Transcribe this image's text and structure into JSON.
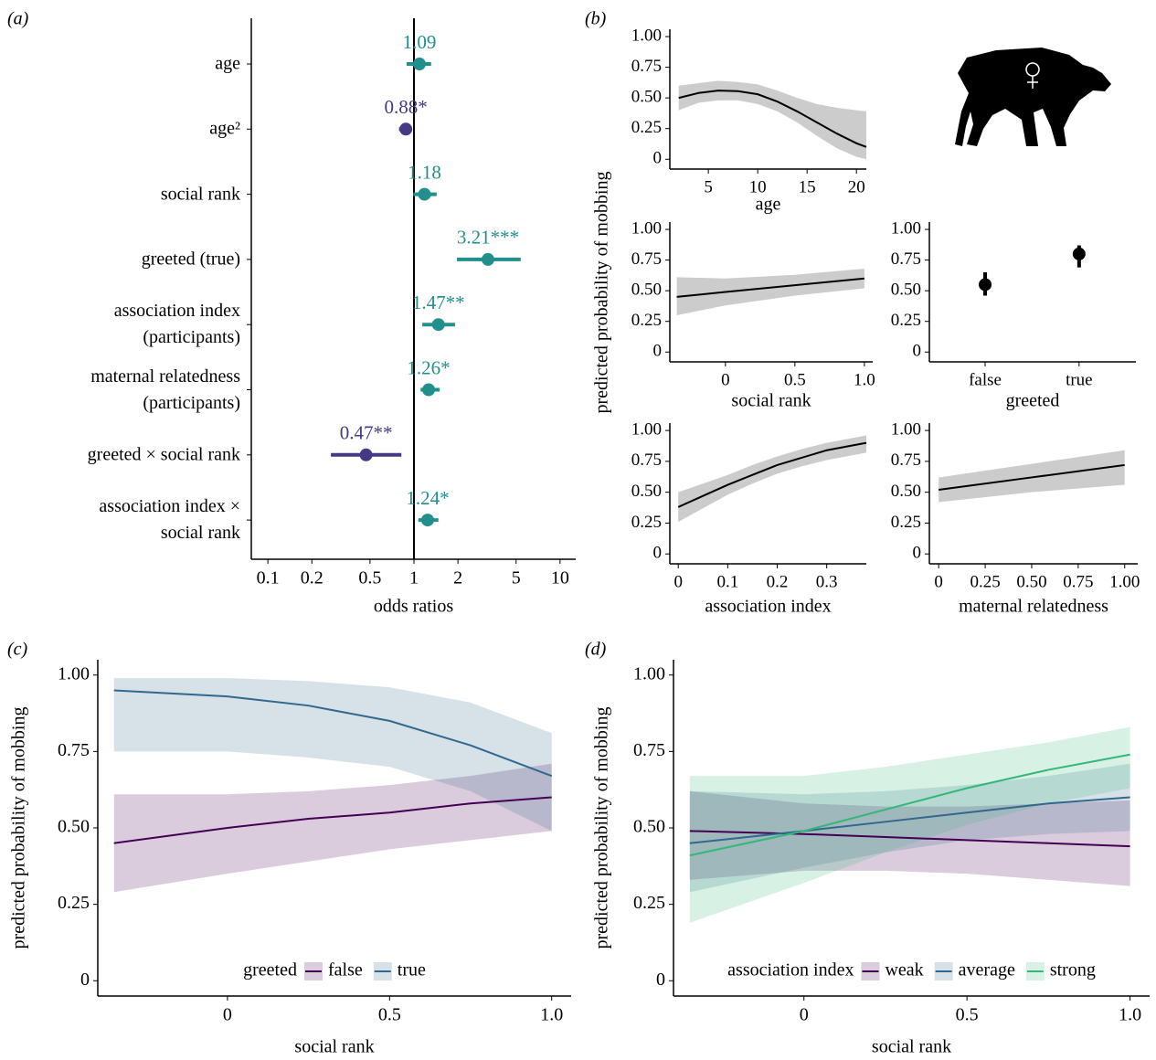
{
  "chart_data": [
    {
      "type": "forest",
      "panel": "(a)",
      "xlabel": "odds ratios",
      "log_x": true,
      "xlim": [
        0.077,
        12.8
      ],
      "xticks": [
        0.1,
        0.2,
        0.5,
        1,
        2,
        5,
        10
      ],
      "refline": 1,
      "categories": [
        "age",
        "age²",
        "social rank",
        "greeted (true)",
        "association index\n(participants)",
        "maternal relatedness\n(participants)",
        "greeted × social rank",
        "association index ×\nsocial rank"
      ],
      "values": [
        1.09,
        0.88,
        1.18,
        3.21,
        1.47,
        1.26,
        0.47,
        1.24
      ],
      "value_labels": [
        "1.09",
        "0.88*",
        "1.18",
        "3.21***",
        "1.47**",
        "1.26*",
        "0.47**",
        "1.24*"
      ],
      "lower": [
        0.89,
        0.79,
        0.99,
        1.97,
        1.14,
        1.11,
        0.27,
        1.07
      ],
      "upper": [
        1.31,
        0.96,
        1.43,
        5.38,
        1.91,
        1.5,
        0.82,
        1.47
      ],
      "colors": [
        "#21908c",
        "#443a83",
        "#21908c",
        "#21908c",
        "#21908c",
        "#21908c",
        "#443a83",
        "#21908c"
      ]
    },
    {
      "type": "line",
      "panel": "(b)",
      "ylabel": "predicted probability of mobbing",
      "xlabel": "age",
      "x": [
        2,
        4,
        6,
        8,
        10,
        12,
        14,
        16,
        18,
        20,
        21
      ],
      "xlim": [
        1.1,
        21
      ],
      "xticks": [
        5,
        10,
        15,
        20
      ],
      "ylim": [
        -0.08,
        1.06
      ],
      "yticks": [
        0,
        0.25,
        {
          "value": 0.5,
          "label": "0.50"
        },
        0.75,
        {
          "value": 1,
          "label": "1.00"
        }
      ],
      "series": [
        {
          "color": "#000000",
          "values": [
            0.5,
            0.54,
            0.56,
            0.555,
            0.53,
            0.47,
            0.39,
            0.3,
            0.21,
            0.13,
            0.1
          ],
          "lower": [
            0.4,
            0.46,
            0.48,
            0.48,
            0.45,
            0.39,
            0.3,
            0.19,
            0.09,
            0.02,
            0.0
          ],
          "upper": [
            0.6,
            0.62,
            0.64,
            0.63,
            0.61,
            0.56,
            0.5,
            0.45,
            0.42,
            0.4,
            0.39
          ]
        }
      ]
    },
    {
      "type": "line",
      "xlabel": "social rank",
      "x": [
        -0.35,
        0,
        0.5,
        1.0
      ],
      "xlim": [
        -0.4,
        1.06
      ],
      "xticks": [
        0,
        0.5,
        {
          "value": 1,
          "label": "1.0"
        }
      ],
      "ylim": [
        -0.08,
        1.06
      ],
      "yticks": [
        0,
        0.25,
        {
          "value": 0.5,
          "label": "0.50"
        },
        0.75,
        {
          "value": 1,
          "label": "1.00"
        }
      ],
      "series": [
        {
          "color": "#000000",
          "values": [
            0.45,
            0.49,
            0.545,
            0.6
          ],
          "lower": [
            0.3,
            0.38,
            0.46,
            0.52
          ],
          "upper": [
            0.61,
            0.6,
            0.63,
            0.68
          ]
        }
      ]
    },
    {
      "type": "pointrange",
      "xlabel": "greeted",
      "categories": [
        "false",
        "true"
      ],
      "values": [
        0.55,
        0.8
      ],
      "lower": [
        0.46,
        0.69
      ],
      "upper": [
        0.65,
        0.87
      ],
      "color": "#000000",
      "ylim": [
        -0.08,
        1.06
      ],
      "yticks": [
        0,
        0.25,
        {
          "value": 0.5,
          "label": "0.50"
        },
        0.75,
        {
          "value": 1,
          "label": "1.00"
        }
      ]
    },
    {
      "type": "line",
      "xlabel": "association index",
      "x": [
        0,
        0.05,
        0.1,
        0.15,
        0.2,
        0.25,
        0.3,
        0.38
      ],
      "xlim": [
        -0.017,
        0.38
      ],
      "xticks": [
        0,
        0.1,
        0.2,
        0.3
      ],
      "ylim": [
        -0.08,
        1.06
      ],
      "yticks": [
        0,
        0.25,
        {
          "value": 0.5,
          "label": "0.50"
        },
        0.75,
        {
          "value": 1,
          "label": "1.00"
        }
      ],
      "series": [
        {
          "color": "#000000",
          "values": [
            0.38,
            0.47,
            0.56,
            0.64,
            0.72,
            0.78,
            0.84,
            0.9
          ],
          "lower": [
            0.26,
            0.37,
            0.48,
            0.57,
            0.65,
            0.71,
            0.76,
            0.82
          ],
          "upper": [
            0.5,
            0.57,
            0.64,
            0.72,
            0.79,
            0.85,
            0.9,
            0.96
          ]
        }
      ]
    },
    {
      "type": "line",
      "xlabel": "maternal relatedness",
      "x": [
        0,
        0.5,
        1.0
      ],
      "xlim": [
        -0.05,
        1.07
      ],
      "xticks": [
        0,
        0.25,
        {
          "value": 0.5,
          "label": "0.50"
        },
        0.75,
        {
          "value": 1,
          "label": "1.00"
        }
      ],
      "ylim": [
        -0.08,
        1.06
      ],
      "yticks": [
        0,
        0.25,
        {
          "value": 0.5,
          "label": "0.50"
        },
        0.75,
        {
          "value": 1,
          "label": "1.00"
        }
      ],
      "series": [
        {
          "color": "#000000",
          "values": [
            0.52,
            0.62,
            0.72
          ],
          "lower": [
            0.42,
            0.5,
            0.56
          ],
          "upper": [
            0.62,
            0.73,
            0.84
          ]
        }
      ]
    },
    {
      "type": "line",
      "panel": "(c)",
      "ylabel": "predicted probability of mobbing",
      "xlabel": "social rank",
      "legend": "bottom",
      "legend_title": "greeted",
      "x": [
        -0.35,
        0,
        0.25,
        0.5,
        0.75,
        1.0
      ],
      "xlim": [
        -0.4,
        1.06
      ],
      "xticks": [
        0,
        0.5,
        {
          "value": 1,
          "label": "1.0"
        }
      ],
      "ylim": [
        -0.05,
        1.05
      ],
      "yticks": [
        0,
        0.25,
        {
          "value": 0.5,
          "label": "0.50"
        },
        0.75,
        {
          "value": 1,
          "label": "1.00"
        }
      ],
      "series": [
        {
          "name": "false",
          "color": "#440154",
          "values": [
            0.45,
            0.5,
            0.53,
            0.55,
            0.58,
            0.6
          ],
          "lower": [
            0.29,
            0.35,
            0.39,
            0.43,
            0.46,
            0.49
          ],
          "upper": [
            0.61,
            0.61,
            0.62,
            0.64,
            0.67,
            0.71
          ]
        },
        {
          "name": "true",
          "color": "#31688e",
          "values": [
            0.95,
            0.93,
            0.9,
            0.85,
            0.77,
            0.67
          ],
          "lower": [
            0.75,
            0.75,
            0.73,
            0.7,
            0.62,
            0.49
          ],
          "upper": [
            0.99,
            0.99,
            0.98,
            0.96,
            0.91,
            0.81
          ]
        }
      ]
    },
    {
      "type": "line",
      "panel": "(d)",
      "ylabel": "predicted probability of mobbing",
      "xlabel": "social rank",
      "legend": "bottom",
      "legend_title": "association index",
      "x": [
        -0.35,
        0,
        0.25,
        0.5,
        0.75,
        1.0
      ],
      "xlim": [
        -0.4,
        1.06
      ],
      "xticks": [
        0,
        0.5,
        {
          "value": 1,
          "label": "1.0"
        }
      ],
      "ylim": [
        -0.05,
        1.05
      ],
      "yticks": [
        0,
        0.25,
        {
          "value": 0.5,
          "label": "0.50"
        },
        0.75,
        {
          "value": 1,
          "label": "1.00"
        }
      ],
      "series": [
        {
          "name": "weak",
          "color": "#440154",
          "values": [
            0.49,
            0.48,
            0.47,
            0.46,
            0.45,
            0.44
          ],
          "lower": [
            0.33,
            0.36,
            0.36,
            0.35,
            0.33,
            0.31
          ],
          "upper": [
            0.62,
            0.58,
            0.57,
            0.57,
            0.58,
            0.59
          ]
        },
        {
          "name": "average",
          "color": "#31688e",
          "values": [
            0.45,
            0.49,
            0.52,
            0.55,
            0.58,
            0.6
          ],
          "lower": [
            0.29,
            0.37,
            0.42,
            0.46,
            0.48,
            0.49
          ],
          "upper": [
            0.62,
            0.61,
            0.62,
            0.64,
            0.67,
            0.71
          ]
        },
        {
          "name": "strong",
          "color": "#35b779",
          "values": [
            0.41,
            0.49,
            0.56,
            0.63,
            0.69,
            0.74
          ],
          "lower": [
            0.19,
            0.32,
            0.42,
            0.51,
            0.58,
            0.63
          ],
          "upper": [
            0.67,
            0.67,
            0.7,
            0.74,
            0.78,
            0.83
          ]
        }
      ]
    }
  ]
}
